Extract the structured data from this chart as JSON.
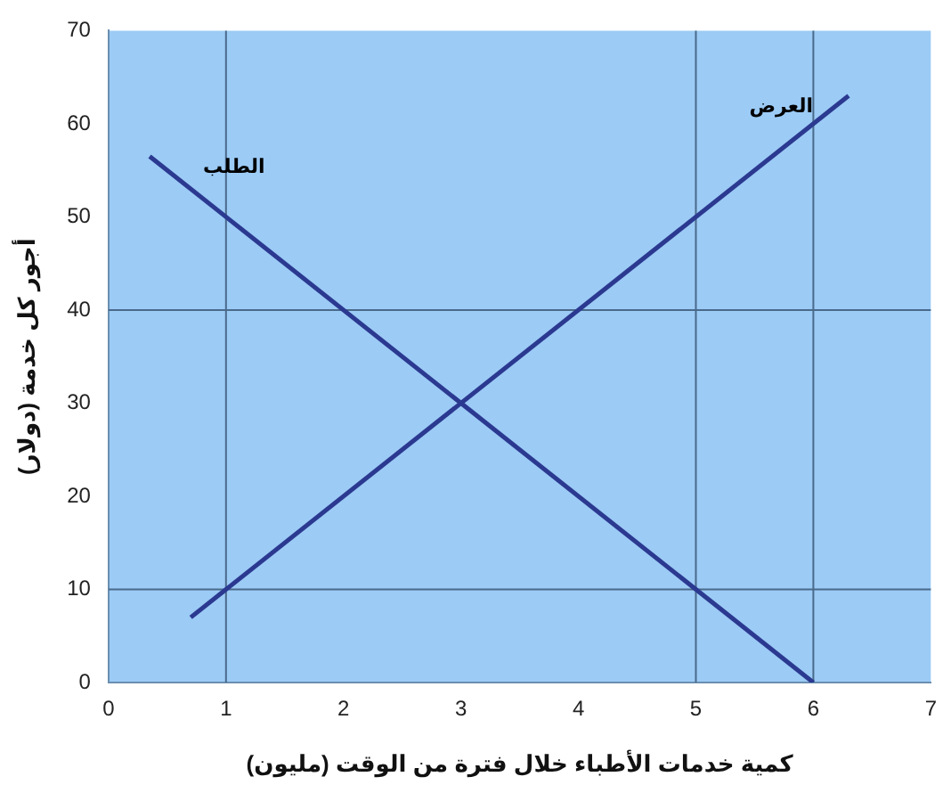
{
  "chart_data": {
    "type": "line",
    "xlabel": "كمية خدمات الأطباء خلال فترة من الوقت (مليون)",
    "ylabel": "أجور كل خدمة (دولار)",
    "series": [
      {
        "name": "الطلب",
        "color": "#2b3990",
        "x": [
          0.35,
          6
        ],
        "values": [
          56.5,
          0
        ]
      },
      {
        "name": "العرض",
        "color": "#2b3990",
        "x": [
          0.7,
          6.3
        ],
        "values": [
          7,
          63
        ]
      }
    ],
    "xlim": [
      0,
      7
    ],
    "xticks": [
      0,
      1,
      2,
      3,
      4,
      5,
      6,
      7
    ],
    "ylim": [
      0,
      70
    ],
    "yticks": [
      0,
      10,
      20,
      30,
      40,
      50,
      60,
      70
    ],
    "ref_lines": [
      {
        "axis": "x",
        "value": 1,
        "color": "#4a6a8a"
      },
      {
        "axis": "x",
        "value": 5,
        "color": "#4a6a8a"
      },
      {
        "axis": "x",
        "value": 6,
        "color": "#4a6a8a"
      },
      {
        "axis": "y",
        "value": 10,
        "color": "#4a6a8a"
      },
      {
        "axis": "y",
        "value": 40,
        "color": "#4a6a8a"
      }
    ],
    "grid": false,
    "legend": false,
    "marker": "none",
    "line_style": "solid"
  }
}
